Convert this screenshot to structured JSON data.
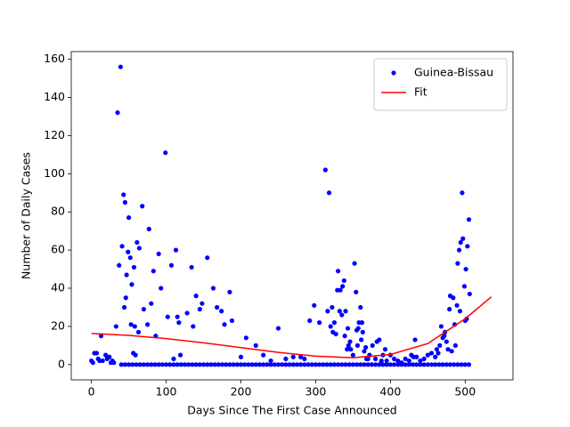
{
  "chart_data": {
    "type": "scatter",
    "xlabel": "Days Since The First Case Announced",
    "ylabel": "Number of Daily Cases",
    "xlim": [
      -27,
      564
    ],
    "ylim": [
      -8,
      164
    ],
    "xticks": [
      0,
      100,
      200,
      300,
      400,
      500
    ],
    "yticks": [
      0,
      20,
      40,
      60,
      80,
      100,
      120,
      140,
      160
    ],
    "legend": "upper right",
    "series": [
      {
        "name": "Guinea-Bissau",
        "color": "blue",
        "mode": "markers",
        "x": [
          0,
          2,
          4,
          7,
          9,
          11,
          13,
          15,
          19,
          21,
          24,
          26,
          28,
          30,
          33,
          35,
          37,
          39,
          41,
          43,
          44,
          45,
          46,
          47,
          49,
          50,
          52,
          53,
          54,
          56,
          57,
          58,
          59,
          61,
          63,
          64,
          68,
          70,
          75,
          77,
          80,
          83,
          86,
          90,
          93,
          99,
          102,
          107,
          110,
          113,
          115,
          117,
          119,
          128,
          134,
          136,
          140,
          145,
          148,
          155,
          163,
          168,
          174,
          178,
          185,
          188,
          200,
          207,
          220,
          230,
          240,
          250,
          260,
          270,
          280,
          285,
          292,
          298,
          305,
          313,
          316,
          318,
          320,
          322,
          323,
          325,
          327,
          329,
          330,
          332,
          333,
          335,
          336,
          338,
          339,
          340,
          342,
          343,
          344,
          346,
          347,
          350,
          352,
          354,
          355,
          356,
          357,
          358,
          360,
          361,
          362,
          363,
          365,
          367,
          368,
          370,
          372,
          376,
          380,
          382,
          385,
          388,
          390,
          393,
          395,
          400,
          405,
          410,
          415,
          420,
          425,
          428,
          431,
          433,
          435,
          440,
          445,
          450,
          455,
          460,
          462,
          464,
          466,
          468,
          470,
          472,
          473,
          475,
          477,
          479,
          480,
          482,
          484,
          486,
          487,
          489,
          490,
          492,
          493,
          494,
          496,
          497,
          499,
          500,
          501,
          502,
          503,
          505,
          506,
          40,
          45,
          50,
          55,
          60,
          65,
          70,
          75,
          80,
          85,
          90,
          95,
          100,
          105,
          110,
          115,
          120,
          125,
          130,
          135,
          140,
          145,
          150,
          155,
          160,
          165,
          170,
          175,
          180,
          185,
          190,
          195,
          200,
          205,
          210,
          215,
          220,
          225,
          230,
          235,
          240,
          245,
          250,
          255,
          260,
          265,
          270,
          275,
          280,
          285,
          290,
          295,
          300,
          305,
          310,
          315,
          320,
          325,
          330,
          335,
          340,
          345,
          350,
          355,
          360,
          365,
          370,
          375,
          380,
          385,
          390,
          395,
          400,
          405,
          410,
          415,
          420,
          425,
          430,
          435,
          440,
          445,
          450,
          455,
          460,
          465,
          470,
          475,
          480,
          485,
          490,
          495,
          500,
          505
        ],
        "values": [
          2,
          1,
          6,
          6,
          3,
          2,
          15,
          2,
          5,
          3,
          4,
          1,
          2,
          1,
          20,
          132,
          52,
          156,
          62,
          89,
          30,
          85,
          35,
          47,
          59,
          77,
          56,
          21,
          42,
          6,
          51,
          20,
          5,
          64,
          17,
          61,
          83,
          29,
          21,
          71,
          32,
          49,
          15,
          58,
          40,
          111,
          25,
          52,
          3,
          60,
          25,
          22,
          5,
          27,
          51,
          20,
          36,
          29,
          32,
          56,
          40,
          30,
          28,
          21,
          38,
          23,
          4,
          14,
          10,
          5,
          2,
          19,
          3,
          4,
          4,
          3,
          23,
          31,
          22,
          102,
          28,
          90,
          20,
          30,
          17,
          22,
          16,
          39,
          49,
          28,
          39,
          26,
          41,
          44,
          15,
          28,
          8,
          19,
          10,
          12,
          8,
          5,
          53,
          38,
          18,
          10,
          19,
          22,
          30,
          13,
          22,
          17,
          7,
          9,
          3,
          3,
          5,
          10,
          3,
          12,
          13,
          2,
          5,
          8,
          2,
          5,
          3,
          2,
          1,
          3,
          2,
          5,
          4,
          13,
          4,
          2,
          3,
          5,
          6,
          4,
          8,
          6,
          10,
          20,
          14,
          15,
          17,
          12,
          8,
          29,
          36,
          7,
          35,
          21,
          10,
          31,
          53,
          60,
          28,
          64,
          90,
          66,
          41,
          23,
          50,
          24,
          62,
          76,
          37,
          0,
          0,
          0,
          0,
          0,
          0,
          0,
          0,
          0,
          0,
          0,
          0,
          0,
          0,
          0,
          0,
          0,
          0,
          0,
          0,
          0,
          0,
          0,
          0,
          0,
          0,
          0,
          0,
          0,
          0,
          0,
          0,
          0,
          0,
          0,
          0,
          0,
          0,
          0,
          0,
          0,
          0,
          0,
          0,
          0,
          0,
          0,
          0,
          0,
          0,
          0,
          0,
          0,
          0,
          0,
          0,
          0,
          0,
          0,
          0,
          0,
          0,
          0,
          0,
          0,
          0,
          0,
          0,
          0,
          0,
          0,
          0,
          0,
          0,
          0,
          0,
          0,
          0,
          0,
          0,
          0,
          0,
          0,
          0,
          0,
          0,
          0,
          0,
          0,
          0,
          0,
          0,
          0,
          0
        ]
      },
      {
        "name": "Fit",
        "color": "red",
        "mode": "line",
        "x": [
          0,
          50,
          100,
          150,
          200,
          250,
          300,
          350,
          400,
          450,
          500,
          535
        ],
        "values": [
          16.3,
          15.3,
          13.6,
          11.4,
          8.9,
          6.4,
          4.4,
          3.6,
          5.3,
          11,
          24,
          35.5
        ]
      }
    ]
  }
}
